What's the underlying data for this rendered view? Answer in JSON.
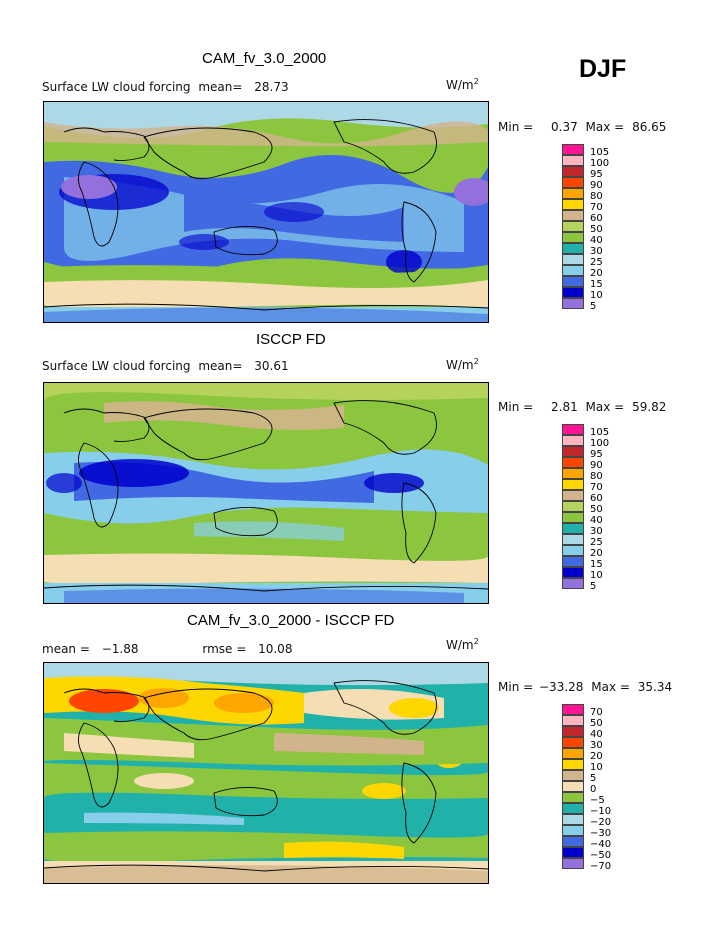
{
  "season": "DJF",
  "units": {
    "base": "W/m",
    "exp": "2"
  },
  "panels": [
    {
      "title": "CAM_fv_3.0_2000",
      "subtitle": "Surface LW cloud forcing",
      "mean_label": "mean=",
      "mean_value": "28.73",
      "min_label": "Min =",
      "min_value": "0.37",
      "max_label": "Max =",
      "max_value": "86.65"
    },
    {
      "title": "ISCCP FD",
      "subtitle": "Surface LW cloud forcing",
      "mean_label": "mean=",
      "mean_value": "30.61",
      "min_label": "Min =",
      "min_value": "2.81",
      "max_label": "Max =",
      "max_value": "59.82"
    },
    {
      "title": "CAM_fv_3.0_2000 - ISCCP FD",
      "mean_label": "mean =",
      "mean_value": "−1.88",
      "rmse_label": "rmse =",
      "rmse_value": "10.08",
      "min_label": "Min =",
      "min_value": "−33.28",
      "max_label": "Max =",
      "max_value": "35.34"
    }
  ],
  "legends": {
    "absolute": {
      "labels": [
        "105",
        "100",
        "95",
        "90",
        "80",
        "70",
        "60",
        "50",
        "40",
        "30",
        "25",
        "20",
        "15",
        "10",
        "5"
      ],
      "colors": [
        "#ff1493",
        "#ffb6c1",
        "#c0282d",
        "#ff4500",
        "#ffa500",
        "#ffd700",
        "#d2b48c",
        "#b5d25a",
        "#8cc63f",
        "#20b2aa",
        "#add8e6",
        "#87ceeb",
        "#4169e1",
        "#0000cd",
        "#9370db"
      ]
    },
    "difference": {
      "labels": [
        "70",
        "50",
        "40",
        "30",
        "20",
        "10",
        "5",
        "0",
        "−5",
        "−10",
        "−20",
        "−30",
        "−40",
        "−50",
        "−70"
      ],
      "colors": [
        "#ff1493",
        "#ffb6c1",
        "#c0282d",
        "#ff4500",
        "#ffa500",
        "#ffd700",
        "#d2b48c",
        "#f5deb3",
        "#8cc63f",
        "#20b2aa",
        "#add8e6",
        "#87ceeb",
        "#4169e1",
        "#0000cd",
        "#9370db"
      ]
    }
  }
}
